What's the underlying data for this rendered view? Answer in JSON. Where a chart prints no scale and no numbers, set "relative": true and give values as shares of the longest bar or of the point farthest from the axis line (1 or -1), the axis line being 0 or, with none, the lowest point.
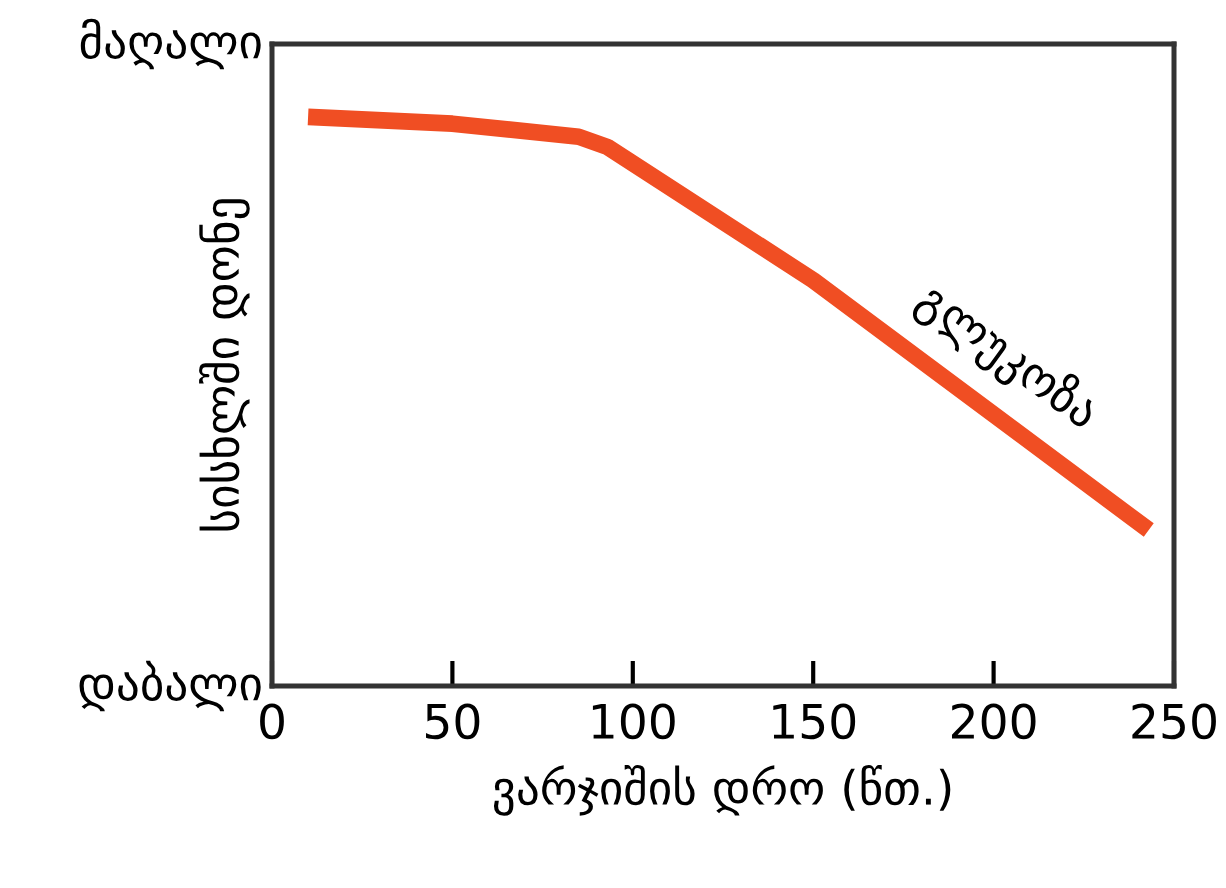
{
  "chart_data": {
    "type": "line",
    "relative": true,
    "xlabel": "ვარჯიშის დრო (წთ.)",
    "ylabel": "სისხლში დონე",
    "annotations": [
      "მაღალი",
      "დაბალი"
    ],
    "xlim": [
      0,
      250
    ],
    "xticks": [
      0,
      50,
      100,
      150,
      200,
      250
    ],
    "series": [
      {
        "name": "გლუკოზა",
        "color": "#f04e23",
        "x": [
          10,
          50,
          85,
          93,
          150,
          243
        ],
        "values": [
          1,
          0.988,
          0.965,
          0.947,
          0.713,
          0.274
        ]
      }
    ],
    "grid": false,
    "legend": false,
    "marker": "none",
    "line_style": "solid"
  }
}
